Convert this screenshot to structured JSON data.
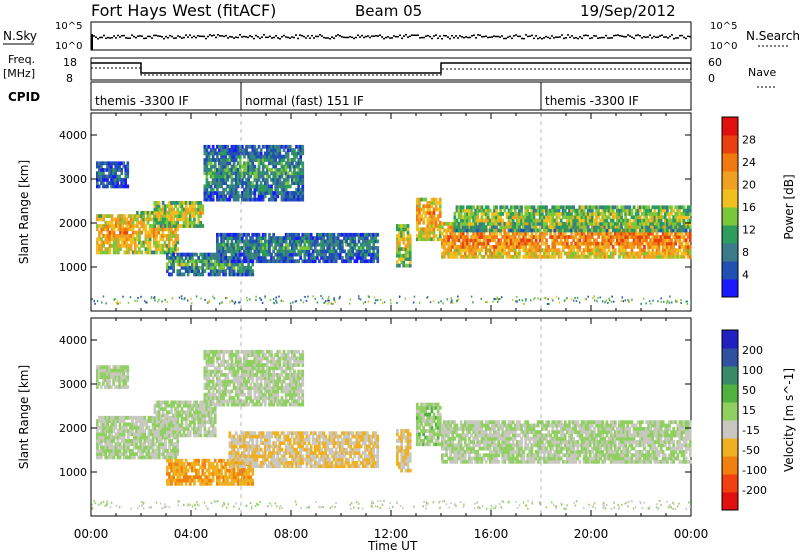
{
  "header": {
    "station": "Fort Hays West (fitACF)",
    "beam": "Beam 05",
    "date": "19/Sep/2012"
  },
  "strips": {
    "nsky_label": "N.Sky",
    "nsearch_label": "N.Search",
    "log_ticks": [
      "10^5",
      "10^0"
    ],
    "freq_label_1": "Freq.",
    "freq_label_2": "[MHz]",
    "freq_ticks": [
      "18",
      "8"
    ],
    "nave_label": "Nave",
    "nave_ticks": [
      "60",
      "0"
    ],
    "cpid_label": "CPID",
    "cpid_segments": [
      {
        "label": "themis -3300 IF",
        "start_h": 0,
        "end_h": 6
      },
      {
        "label": "normal (fast) 151 IF",
        "start_h": 6,
        "end_h": 18
      },
      {
        "label": "themis -3300 IF",
        "start_h": 18,
        "end_h": 24
      }
    ]
  },
  "axes": {
    "x_label": "Time UT",
    "x_ticks": [
      "00:00",
      "04:00",
      "08:00",
      "12:00",
      "16:00",
      "20:00",
      "00:00"
    ],
    "y_label": "Slant Range [km]",
    "y_ticks": [
      "1000",
      "2000",
      "3000",
      "4000"
    ]
  },
  "power_scale": {
    "label": "Power [dB]",
    "ticks": [
      "4",
      "8",
      "12",
      "16",
      "20",
      "24",
      "28"
    ],
    "colors": [
      "#1a1aff",
      "#224fb4",
      "#3a7a8a",
      "#2d9c5c",
      "#7ac83a",
      "#f0c020",
      "#f0a020",
      "#f07a10",
      "#e84010",
      "#e01010"
    ]
  },
  "velocity_scale": {
    "label": "Velocity [m s^-1]",
    "ticks": [
      "200",
      "100",
      "50",
      "15",
      "-15",
      "-50",
      "-100",
      "-200"
    ],
    "colors": [
      "#2020c0",
      "#3050a0",
      "#3a8a6a",
      "#50b040",
      "#90d060",
      "#c8c8c0",
      "#f0b020",
      "#f08010",
      "#f04010",
      "#e01010"
    ]
  },
  "chart_data": [
    {
      "type": "heatmap",
      "title": "Power",
      "xlabel": "Time UT",
      "ylabel": "Slant Range [km]",
      "xlim": [
        0,
        24
      ],
      "ylim": [
        0,
        4500
      ],
      "colorbar": {
        "label": "Power [dB]",
        "range": [
          0,
          32
        ]
      },
      "bands": [
        {
          "t0": 0.2,
          "t1": 1.8,
          "r0": 1300,
          "r1": 2200,
          "level": 22
        },
        {
          "t0": 1.8,
          "t1": 3.5,
          "r0": 1300,
          "r1": 2300,
          "level": 20
        },
        {
          "t0": 2.5,
          "t1": 4.5,
          "r0": 1900,
          "r1": 2500,
          "level": 18
        },
        {
          "t0": 3.0,
          "t1": 6.5,
          "r0": 800,
          "r1": 1300,
          "level": 12
        },
        {
          "t0": 5.0,
          "t1": 11.5,
          "r0": 1100,
          "r1": 1800,
          "level": 10
        },
        {
          "t0": 4.5,
          "t1": 8.5,
          "r0": 2500,
          "r1": 3800,
          "level": 11
        },
        {
          "t0": 0.2,
          "t1": 1.5,
          "r0": 2800,
          "r1": 3400,
          "level": 8
        },
        {
          "t0": 12.2,
          "t1": 12.8,
          "r0": 1000,
          "r1": 2000,
          "level": 18
        },
        {
          "t0": 13.0,
          "t1": 14.0,
          "r0": 1600,
          "r1": 2600,
          "level": 22
        },
        {
          "t0": 14.0,
          "t1": 24.0,
          "r0": 1200,
          "r1": 2000,
          "level": 24
        },
        {
          "t0": 14.5,
          "t1": 24.0,
          "r0": 1800,
          "r1": 2400,
          "level": 16
        }
      ]
    },
    {
      "type": "heatmap",
      "title": "Velocity",
      "xlabel": "Time UT",
      "ylabel": "Slant Range [km]",
      "xlim": [
        0,
        24
      ],
      "ylim": [
        0,
        4500
      ],
      "colorbar": {
        "label": "Velocity [m s^-1]",
        "range": [
          -200,
          200
        ]
      },
      "bands": [
        {
          "t0": 0.2,
          "t1": 3.5,
          "r0": 1300,
          "r1": 2300,
          "level": 0
        },
        {
          "t0": 2.5,
          "t1": 5.0,
          "r0": 1800,
          "r1": 2600,
          "level": 0
        },
        {
          "t0": 3.0,
          "t1": 6.5,
          "r0": 700,
          "r1": 1300,
          "level": -70
        },
        {
          "t0": 5.5,
          "t1": 11.5,
          "r0": 1100,
          "r1": 1900,
          "level": -40
        },
        {
          "t0": 4.5,
          "t1": 8.5,
          "r0": 2500,
          "r1": 3800,
          "level": 0
        },
        {
          "t0": 0.2,
          "t1": 1.5,
          "r0": 2900,
          "r1": 3400,
          "level": 0
        },
        {
          "t0": 12.2,
          "t1": 12.8,
          "r0": 1000,
          "r1": 2000,
          "level": -40
        },
        {
          "t0": 13.0,
          "t1": 14.0,
          "r0": 1600,
          "r1": 2600,
          "level": 20
        },
        {
          "t0": 14.0,
          "t1": 24.0,
          "r0": 1200,
          "r1": 2200,
          "level": 0
        }
      ]
    }
  ]
}
